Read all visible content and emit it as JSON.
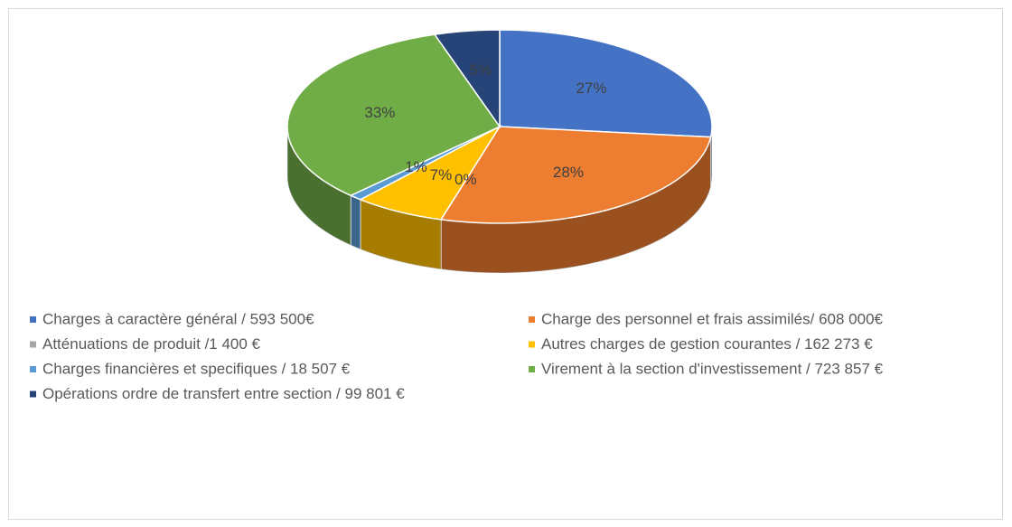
{
  "chart_data": {
    "type": "pie",
    "categories": [
      "Charges à caractère général / 593 500€",
      "Charge des personnel et frais assimilés/ 608 000€",
      "Atténuations de produit /1 400 €",
      "Autres charges de gestion courantes / 162 273 €",
      "Charges financières et specifiques / 18 507 €",
      "Virement à la section d'investissement / 723 857 €",
      "Opérations ordre de transfert entre section / 99 801 €"
    ],
    "values": [
      27,
      28,
      0,
      7,
      1,
      33,
      5
    ],
    "value_labels": [
      "27%",
      "28%",
      "0%",
      "7%",
      "1%",
      "33%",
      "5%"
    ],
    "colors": [
      "#4472c4",
      "#ed7d31",
      "#a5a5a5",
      "#ffc000",
      "#5b9bd5",
      "#70ad47",
      "#264478"
    ],
    "legend": "bottom"
  }
}
